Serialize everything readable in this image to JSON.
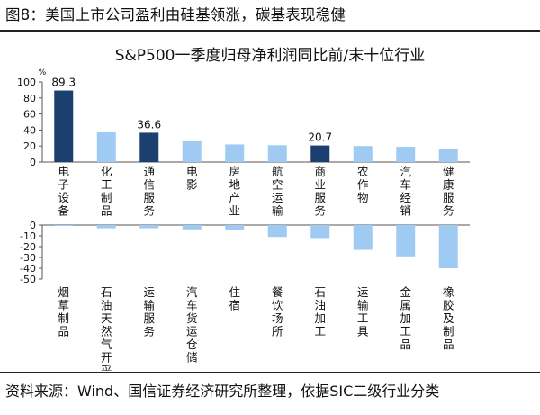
{
  "figure_caption": "图8：美国上市公司盈利由硅基领涨，碳基表现稳健",
  "source_note": "资料来源：Wind、国信证券经济研究所整理，依据SIC二级行业分类",
  "colors": {
    "dark": "#1b3f6e",
    "light": "#9fcbf2",
    "axis": "#555555"
  },
  "chart_data": [
    {
      "type": "bar",
      "title": "S&P500一季度归母净利润同比前/末十位行业",
      "ylabel": "%",
      "ylim": [
        0,
        100
      ],
      "yticks": [
        0,
        20,
        40,
        60,
        80,
        100
      ],
      "categories": [
        "电子设备",
        "化工制品",
        "通信服务",
        "电影",
        "房地产业",
        "航空运输",
        "商业服务",
        "农作物",
        "汽车经销",
        "健康服务"
      ],
      "values": [
        89.3,
        37,
        36.6,
        26,
        22,
        21,
        20.7,
        20,
        19,
        16
      ],
      "highlighted": [
        true,
        false,
        true,
        false,
        false,
        false,
        true,
        false,
        false,
        false
      ],
      "data_labels": [
        "89.3",
        "",
        "36.6",
        "",
        "",
        "",
        "20.7",
        "",
        "",
        ""
      ]
    },
    {
      "type": "bar",
      "ylim": [
        -50,
        0
      ],
      "yticks": [
        0,
        -10,
        -20,
        -30,
        -40,
        -50
      ],
      "categories": [
        "烟草制品",
        "石油天然气开采",
        "运输服务",
        "汽车货运仓储",
        "住宿",
        "餐饮场所",
        "石油加工",
        "运输工具",
        "金属加工品",
        "橡胶及制品"
      ],
      "values": [
        -0.5,
        -3,
        -3,
        -4,
        -5,
        -11,
        -12,
        -23,
        -29,
        -40
      ]
    }
  ]
}
